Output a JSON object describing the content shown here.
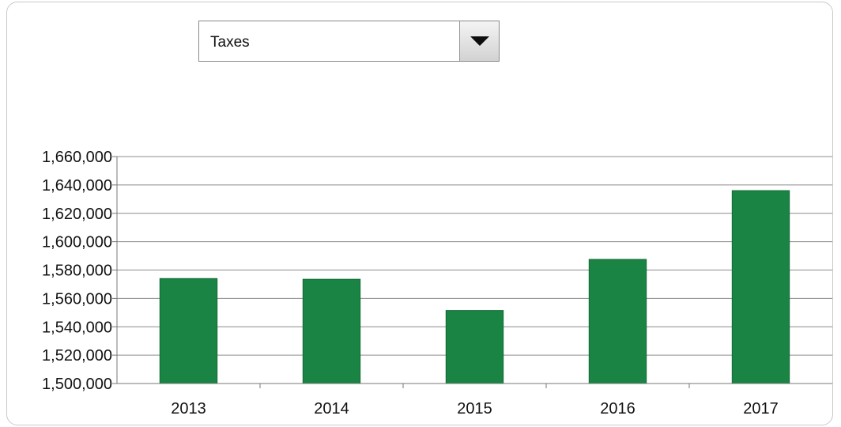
{
  "dropdown": {
    "selected": "Taxes",
    "icon": "caret-down-icon"
  },
  "chart_data": {
    "type": "bar",
    "categories": [
      "2013",
      "2014",
      "2015",
      "2016",
      "2017"
    ],
    "values": [
      1574000,
      1573500,
      1551500,
      1587500,
      1636000
    ],
    "ylim": [
      1500000,
      1660000
    ],
    "yticks": [
      1500000,
      1520000,
      1540000,
      1560000,
      1580000,
      1600000,
      1620000,
      1640000,
      1660000
    ],
    "ytick_labels": [
      "1,500,000",
      "1,520,000",
      "1,540,000",
      "1,560,000",
      "1,580,000",
      "1,600,000",
      "1,620,000",
      "1,640,000",
      "1,660,000"
    ],
    "grid": true,
    "bar_color": "#1a8444",
    "bar_edge_color": "#136a35",
    "grid_color": "#8c8c8c"
  }
}
